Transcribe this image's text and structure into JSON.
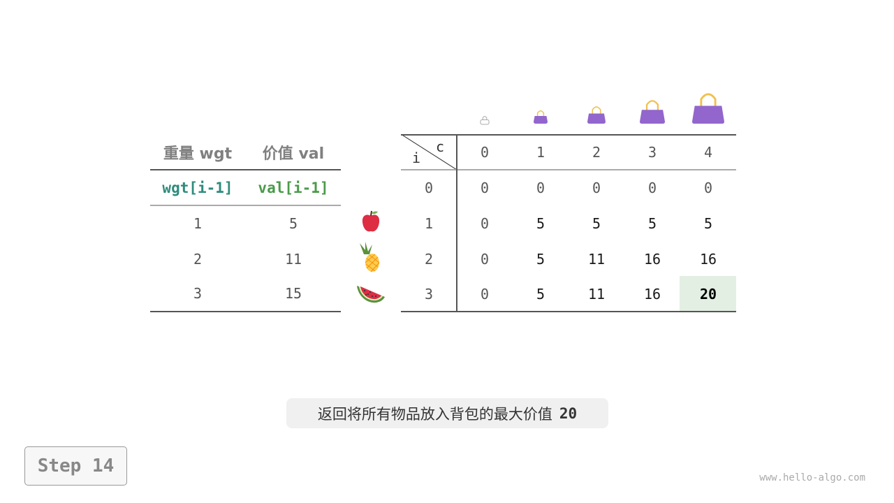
{
  "left_table": {
    "headers": [
      "重量 wgt",
      "价值 val"
    ],
    "subheaders": [
      "wgt[i-1]",
      "val[i-1]"
    ],
    "rows": [
      [
        "1",
        "5"
      ],
      [
        "2",
        "11"
      ],
      [
        "3",
        "15"
      ]
    ]
  },
  "items": [
    {
      "icon": "apple-icon"
    },
    {
      "icon": "pineapple-icon"
    },
    {
      "icon": "watermelon-icon"
    }
  ],
  "dp_table": {
    "corner_row_label": "i",
    "corner_col_label": "c",
    "col_headers": [
      "0",
      "1",
      "2",
      "3",
      "4"
    ],
    "row_headers": [
      "0",
      "1",
      "2",
      "3"
    ],
    "rows": [
      [
        "0",
        "0",
        "0",
        "0",
        "0"
      ],
      [
        "0",
        "5",
        "5",
        "5",
        "5"
      ],
      [
        "0",
        "5",
        "11",
        "16",
        "16"
      ],
      [
        "0",
        "5",
        "11",
        "16",
        "20"
      ]
    ],
    "highlight": {
      "row": 3,
      "col": 4,
      "color": "#e3efe3"
    }
  },
  "bags": [
    {
      "icon": "empty-bag-icon"
    },
    {
      "icon": "bag-icon"
    },
    {
      "icon": "bag-icon"
    },
    {
      "icon": "bag-icon"
    },
    {
      "icon": "bag-icon"
    }
  ],
  "colors": {
    "wgt": "#2e8b7c",
    "val": "#4a9a4a",
    "bag": "#9266cc",
    "handle": "#f2c04f"
  },
  "caption": {
    "text": "返回将所有物品放入背包的最大价值",
    "value": "20"
  },
  "step_label": "Step 14",
  "footer": "www.hello-algo.com"
}
